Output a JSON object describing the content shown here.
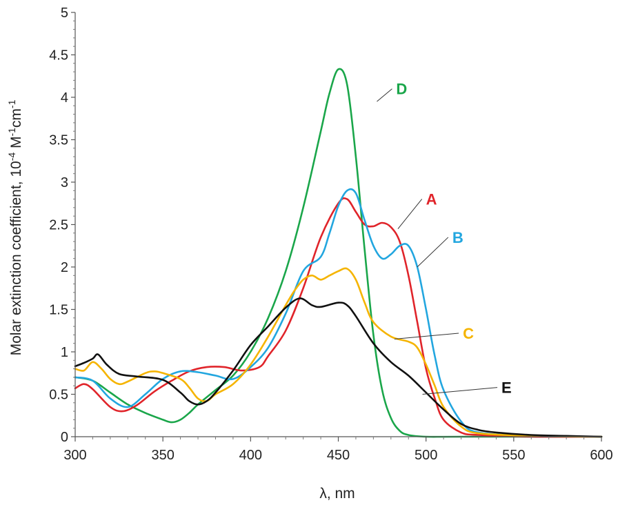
{
  "chart_data": {
    "type": "line",
    "xlabel": "λ, nm",
    "ylabel": {
      "parts": [
        "Molar extinction coefficient, 10",
        "-4",
        " M",
        "-1",
        "cm",
        "-1"
      ]
    },
    "xlim": [
      300,
      600
    ],
    "ylim": [
      0,
      5
    ],
    "xticks": [
      300,
      350,
      400,
      450,
      500,
      550,
      600
    ],
    "yticks": [
      "0",
      "0.5",
      "1",
      "1.5",
      "2",
      "2.5",
      "3",
      "3.5",
      "4",
      "4.5",
      "5"
    ],
    "grid": false,
    "series": [
      {
        "name": "D",
        "color": "#1aa64a",
        "x": [
          300,
          310,
          320,
          330,
          340,
          350,
          355,
          360,
          365,
          370,
          380,
          390,
          400,
          410,
          420,
          430,
          440,
          445,
          450,
          455,
          460,
          465,
          470,
          475,
          480,
          485,
          490,
          500,
          520,
          600
        ],
        "y": [
          0.7,
          0.66,
          0.52,
          0.38,
          0.28,
          0.2,
          0.17,
          0.2,
          0.28,
          0.38,
          0.55,
          0.72,
          1.0,
          1.4,
          1.95,
          2.7,
          3.6,
          4.05,
          4.33,
          4.15,
          3.3,
          2.2,
          1.2,
          0.55,
          0.22,
          0.07,
          0.02,
          0.0,
          0.0,
          0.0
        ]
      },
      {
        "name": "A",
        "color": "#e0242a",
        "x": [
          300,
          305,
          310,
          320,
          327,
          335,
          345,
          355,
          365,
          375,
          385,
          395,
          405,
          410,
          420,
          430,
          440,
          450,
          455,
          460,
          465,
          470,
          475,
          480,
          485,
          490,
          495,
          500,
          505,
          510,
          520,
          530,
          560,
          600
        ],
        "y": [
          0.57,
          0.62,
          0.56,
          0.35,
          0.3,
          0.37,
          0.53,
          0.66,
          0.77,
          0.82,
          0.82,
          0.78,
          0.82,
          0.95,
          1.25,
          1.75,
          2.35,
          2.75,
          2.8,
          2.65,
          2.5,
          2.48,
          2.52,
          2.47,
          2.3,
          1.9,
          1.35,
          0.8,
          0.45,
          0.2,
          0.05,
          0.02,
          0.0,
          0.0
        ]
      },
      {
        "name": "B",
        "color": "#22a6df",
        "x": [
          300,
          310,
          320,
          330,
          340,
          350,
          360,
          370,
          380,
          390,
          400,
          410,
          420,
          430,
          440,
          445,
          450,
          455,
          460,
          465,
          470,
          475,
          480,
          485,
          490,
          495,
          500,
          505,
          510,
          520,
          530,
          560,
          600
        ],
        "y": [
          0.7,
          0.66,
          0.45,
          0.35,
          0.5,
          0.68,
          0.77,
          0.76,
          0.72,
          0.68,
          0.82,
          1.05,
          1.45,
          1.95,
          2.12,
          2.4,
          2.72,
          2.9,
          2.87,
          2.55,
          2.25,
          2.1,
          2.15,
          2.25,
          2.25,
          2.0,
          1.5,
          0.95,
          0.55,
          0.18,
          0.05,
          0.01,
          0.0
        ]
      },
      {
        "name": "C",
        "color": "#f5b400",
        "x": [
          300,
          305,
          310,
          315,
          320,
          325,
          330,
          340,
          345,
          350,
          360,
          365,
          370,
          375,
          380,
          390,
          400,
          410,
          420,
          425,
          430,
          435,
          440,
          445,
          450,
          455,
          460,
          465,
          470,
          480,
          490,
          495,
          500,
          505,
          510,
          520,
          530,
          560,
          600
        ],
        "y": [
          0.8,
          0.78,
          0.88,
          0.8,
          0.68,
          0.62,
          0.65,
          0.75,
          0.77,
          0.75,
          0.68,
          0.58,
          0.45,
          0.42,
          0.5,
          0.62,
          0.85,
          1.18,
          1.55,
          1.72,
          1.85,
          1.9,
          1.85,
          1.9,
          1.95,
          1.98,
          1.85,
          1.58,
          1.35,
          1.18,
          1.12,
          1.05,
          0.85,
          0.6,
          0.35,
          0.12,
          0.04,
          0.01,
          0.0
        ]
      },
      {
        "name": "E",
        "color": "#111111",
        "x": [
          300,
          305,
          310,
          313,
          318,
          325,
          335,
          350,
          360,
          365,
          370,
          375,
          380,
          390,
          400,
          410,
          420,
          428,
          435,
          440,
          450,
          455,
          460,
          470,
          480,
          490,
          500,
          510,
          520,
          530,
          540,
          560,
          580,
          600
        ],
        "y": [
          0.83,
          0.87,
          0.92,
          0.97,
          0.85,
          0.74,
          0.71,
          0.67,
          0.52,
          0.42,
          0.38,
          0.42,
          0.52,
          0.78,
          1.08,
          1.3,
          1.52,
          1.63,
          1.55,
          1.53,
          1.58,
          1.55,
          1.42,
          1.1,
          0.88,
          0.72,
          0.52,
          0.32,
          0.15,
          0.08,
          0.05,
          0.02,
          0.01,
          0.0
        ]
      }
    ],
    "annotations": [
      {
        "text": "D",
        "color": "#1aa64a",
        "at_x": 472,
        "at_y": 3.95,
        "label_x": 483,
        "label_y": 4.1
      },
      {
        "text": "A",
        "color": "#e0242a",
        "at_x": 484,
        "at_y": 2.45,
        "label_x": 500,
        "label_y": 2.8
      },
      {
        "text": "B",
        "color": "#22a6df",
        "at_x": 495,
        "at_y": 2.0,
        "label_x": 515,
        "label_y": 2.35
      },
      {
        "text": "C",
        "color": "#f5b400",
        "at_x": 482,
        "at_y": 1.15,
        "label_x": 521,
        "label_y": 1.22
      },
      {
        "text": "E",
        "color": "#111111",
        "at_x": 498,
        "at_y": 0.5,
        "label_x": 543,
        "label_y": 0.58
      }
    ]
  }
}
